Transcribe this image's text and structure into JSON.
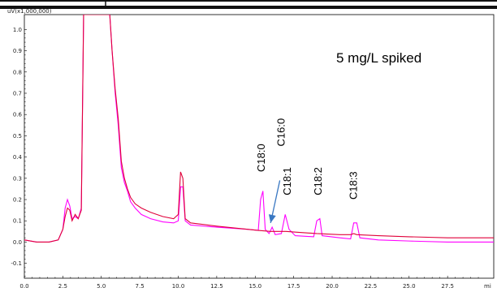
{
  "chart_data": {
    "type": "line",
    "y_unit_label": "uV(x1,000,000)",
    "x_unit_label": "mi",
    "annotation": "5 mg/L spiked",
    "xlim": [
      0,
      30.5
    ],
    "ylim": [
      -0.17,
      1.07
    ],
    "x_ticks": [
      "0.0",
      "2.5",
      "5.0",
      "7.5",
      "10.0",
      "12.5",
      "15.0",
      "17.5",
      "20.0",
      "22.5",
      "25.0",
      "27.5"
    ],
    "y_ticks": [
      "1.0",
      "0.9",
      "0.8",
      "0.7",
      "0.6",
      "0.5",
      "0.4",
      "0.3",
      "0.2",
      "0.1",
      "0.0",
      "-0.1"
    ],
    "x_tick_values": [
      0,
      2.5,
      5,
      7.5,
      10,
      12.5,
      15,
      17.5,
      20,
      22.5,
      25,
      27.5
    ],
    "y_tick_values": [
      1.0,
      0.9,
      0.8,
      0.7,
      0.6,
      0.5,
      0.4,
      0.3,
      0.2,
      0.1,
      0.0,
      -0.1
    ],
    "peak_labels": [
      {
        "text": "C18:0",
        "x": 15.4,
        "y": 0.33
      },
      {
        "text": "C16:0",
        "x": 16.7,
        "y": 0.45
      },
      {
        "text": "C18:1",
        "x": 17.1,
        "y": 0.22
      },
      {
        "text": "C18:2",
        "x": 19.1,
        "y": 0.22
      },
      {
        "text": "C18:3",
        "x": 21.4,
        "y": 0.2
      }
    ],
    "arrow": {
      "from": [
        16.6,
        0.29
      ],
      "to": [
        16.0,
        0.09
      ],
      "color": "#3a78c2"
    },
    "series": [
      {
        "color": "#ff00ff",
        "points": [
          [
            0,
            0.01
          ],
          [
            0.8,
            0.0
          ],
          [
            1.6,
            0.0
          ],
          [
            2.2,
            0.01
          ],
          [
            2.5,
            0.06
          ],
          [
            2.65,
            0.16
          ],
          [
            2.8,
            0.2
          ],
          [
            2.95,
            0.17
          ],
          [
            3.1,
            0.11
          ],
          [
            3.3,
            0.12
          ],
          [
            3.5,
            0.11
          ],
          [
            3.7,
            0.16
          ],
          [
            3.85,
            1.07
          ],
          [
            5.55,
            1.07
          ],
          [
            5.7,
            0.9
          ],
          [
            5.9,
            0.7
          ],
          [
            6.1,
            0.55
          ],
          [
            6.3,
            0.35
          ],
          [
            6.5,
            0.28
          ],
          [
            6.7,
            0.24
          ],
          [
            6.9,
            0.19
          ],
          [
            7.2,
            0.16
          ],
          [
            7.6,
            0.13
          ],
          [
            8.2,
            0.11
          ],
          [
            9.0,
            0.095
          ],
          [
            9.7,
            0.09
          ],
          [
            10.0,
            0.1
          ],
          [
            10.15,
            0.26
          ],
          [
            10.3,
            0.26
          ],
          [
            10.45,
            0.1
          ],
          [
            10.8,
            0.08
          ],
          [
            12.5,
            0.07
          ],
          [
            14.5,
            0.06
          ],
          [
            15.2,
            0.055
          ],
          [
            15.35,
            0.2
          ],
          [
            15.5,
            0.24
          ],
          [
            15.65,
            0.06
          ],
          [
            15.9,
            0.04
          ],
          [
            16.1,
            0.07
          ],
          [
            16.3,
            0.035
          ],
          [
            16.7,
            0.04
          ],
          [
            16.95,
            0.13
          ],
          [
            17.2,
            0.06
          ],
          [
            17.6,
            0.03
          ],
          [
            18.8,
            0.025
          ],
          [
            19.0,
            0.1
          ],
          [
            19.2,
            0.11
          ],
          [
            19.35,
            0.03
          ],
          [
            20.5,
            0.02
          ],
          [
            21.2,
            0.015
          ],
          [
            21.4,
            0.09
          ],
          [
            21.6,
            0.09
          ],
          [
            21.8,
            0.02
          ],
          [
            23.0,
            0.01
          ],
          [
            25.0,
            0.005
          ],
          [
            27.5,
            0.0
          ],
          [
            30.5,
            0.0
          ]
        ]
      },
      {
        "color": "#e0003a",
        "points": [
          [
            0,
            0.01
          ],
          [
            0.8,
            0.0
          ],
          [
            1.6,
            0.0
          ],
          [
            2.2,
            0.01
          ],
          [
            2.5,
            0.06
          ],
          [
            2.65,
            0.12
          ],
          [
            2.8,
            0.16
          ],
          [
            2.95,
            0.15
          ],
          [
            3.1,
            0.1
          ],
          [
            3.3,
            0.13
          ],
          [
            3.5,
            0.11
          ],
          [
            3.7,
            0.15
          ],
          [
            3.85,
            1.07
          ],
          [
            5.55,
            1.07
          ],
          [
            5.7,
            0.9
          ],
          [
            5.9,
            0.72
          ],
          [
            6.1,
            0.58
          ],
          [
            6.3,
            0.38
          ],
          [
            6.5,
            0.3
          ],
          [
            6.7,
            0.25
          ],
          [
            6.9,
            0.21
          ],
          [
            7.2,
            0.18
          ],
          [
            7.6,
            0.16
          ],
          [
            8.2,
            0.14
          ],
          [
            9.0,
            0.12
          ],
          [
            9.7,
            0.11
          ],
          [
            10.0,
            0.13
          ],
          [
            10.15,
            0.33
          ],
          [
            10.3,
            0.3
          ],
          [
            10.45,
            0.11
          ],
          [
            10.8,
            0.09
          ],
          [
            12.5,
            0.075
          ],
          [
            14.5,
            0.06
          ],
          [
            15.2,
            0.055
          ],
          [
            16.0,
            0.05
          ],
          [
            17.0,
            0.05
          ],
          [
            18.0,
            0.045
          ],
          [
            19.0,
            0.04
          ],
          [
            20.5,
            0.035
          ],
          [
            21.2,
            0.035
          ],
          [
            21.4,
            0.04
          ],
          [
            21.6,
            0.035
          ],
          [
            23.0,
            0.03
          ],
          [
            25.0,
            0.025
          ],
          [
            27.5,
            0.02
          ],
          [
            30.5,
            0.02
          ]
        ]
      }
    ]
  }
}
